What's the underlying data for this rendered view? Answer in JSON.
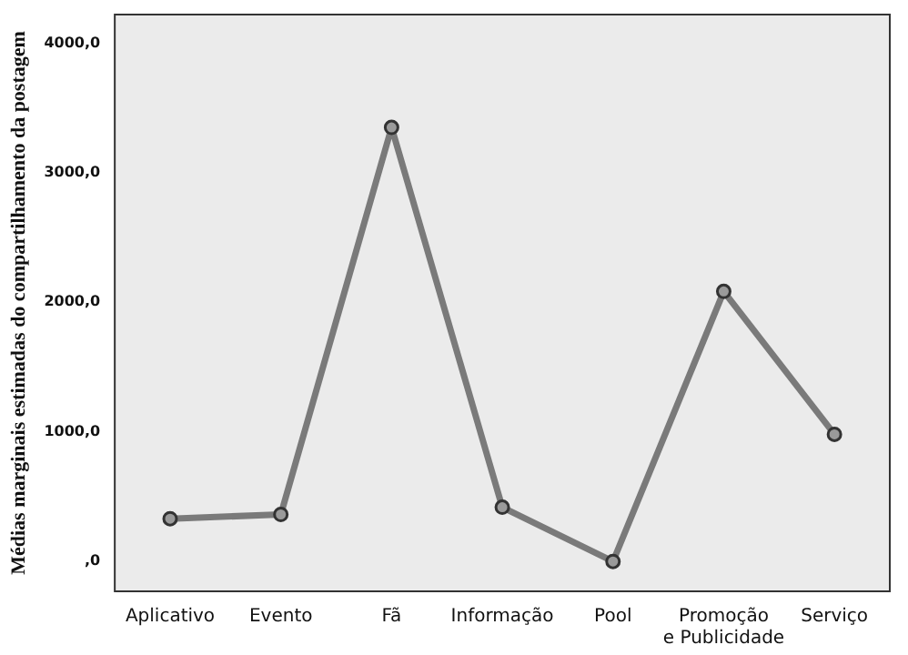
{
  "chart_data": {
    "type": "line",
    "ylabel": "Médias marginais estimadas do compartilhamento da postagem",
    "categories": [
      "Aplicativo",
      "Evento",
      "Fã",
      "Informação",
      "Pool",
      "Promoção e Publicidade",
      "Serviço"
    ],
    "series": [
      {
        "color": "#7a7a7a",
        "values": [
          330,
          363,
          3349,
          419,
          0,
          2084,
          981
        ]
      }
    ],
    "ylim": [
      -230,
      4220
    ],
    "yticks": [
      {
        "value": 0,
        "label": ",0"
      },
      {
        "value": 1000,
        "label": "1000,0"
      },
      {
        "value": 2000,
        "label": "2000,0"
      },
      {
        "value": 3000,
        "label": "3000,0"
      },
      {
        "value": 4000,
        "label": "4000,0"
      }
    ],
    "grid": false,
    "legend": false,
    "marker": "circle",
    "line_style": "solid"
  }
}
